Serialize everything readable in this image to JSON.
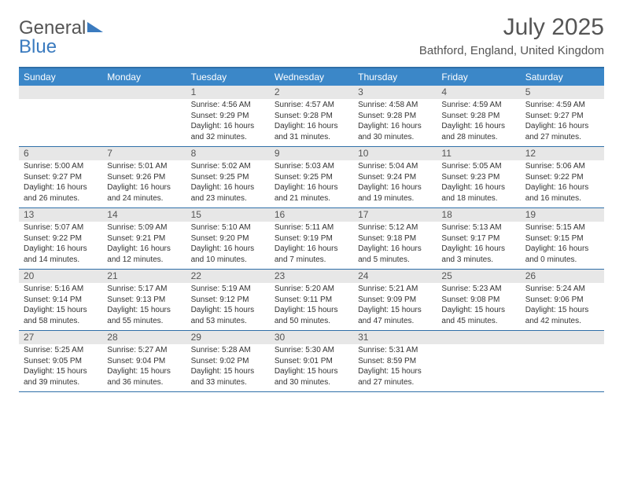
{
  "brand": {
    "part1": "General",
    "part2": "Blue"
  },
  "title": "July 2025",
  "location": "Bathford, England, United Kingdom",
  "colors": {
    "header_bg": "#3b87c8",
    "border": "#2f6fa8",
    "daynum_bg": "#e7e7e7",
    "text": "#555555",
    "brand_blue": "#3b7bbf"
  },
  "days_of_week": [
    "Sunday",
    "Monday",
    "Tuesday",
    "Wednesday",
    "Thursday",
    "Friday",
    "Saturday"
  ],
  "weeks": [
    [
      {
        "n": "",
        "sr": "",
        "ss": "",
        "dl": ""
      },
      {
        "n": "",
        "sr": "",
        "ss": "",
        "dl": ""
      },
      {
        "n": "1",
        "sr": "Sunrise: 4:56 AM",
        "ss": "Sunset: 9:29 PM",
        "dl": "Daylight: 16 hours and 32 minutes."
      },
      {
        "n": "2",
        "sr": "Sunrise: 4:57 AM",
        "ss": "Sunset: 9:28 PM",
        "dl": "Daylight: 16 hours and 31 minutes."
      },
      {
        "n": "3",
        "sr": "Sunrise: 4:58 AM",
        "ss": "Sunset: 9:28 PM",
        "dl": "Daylight: 16 hours and 30 minutes."
      },
      {
        "n": "4",
        "sr": "Sunrise: 4:59 AM",
        "ss": "Sunset: 9:28 PM",
        "dl": "Daylight: 16 hours and 28 minutes."
      },
      {
        "n": "5",
        "sr": "Sunrise: 4:59 AM",
        "ss": "Sunset: 9:27 PM",
        "dl": "Daylight: 16 hours and 27 minutes."
      }
    ],
    [
      {
        "n": "6",
        "sr": "Sunrise: 5:00 AM",
        "ss": "Sunset: 9:27 PM",
        "dl": "Daylight: 16 hours and 26 minutes."
      },
      {
        "n": "7",
        "sr": "Sunrise: 5:01 AM",
        "ss": "Sunset: 9:26 PM",
        "dl": "Daylight: 16 hours and 24 minutes."
      },
      {
        "n": "8",
        "sr": "Sunrise: 5:02 AM",
        "ss": "Sunset: 9:25 PM",
        "dl": "Daylight: 16 hours and 23 minutes."
      },
      {
        "n": "9",
        "sr": "Sunrise: 5:03 AM",
        "ss": "Sunset: 9:25 PM",
        "dl": "Daylight: 16 hours and 21 minutes."
      },
      {
        "n": "10",
        "sr": "Sunrise: 5:04 AM",
        "ss": "Sunset: 9:24 PM",
        "dl": "Daylight: 16 hours and 19 minutes."
      },
      {
        "n": "11",
        "sr": "Sunrise: 5:05 AM",
        "ss": "Sunset: 9:23 PM",
        "dl": "Daylight: 16 hours and 18 minutes."
      },
      {
        "n": "12",
        "sr": "Sunrise: 5:06 AM",
        "ss": "Sunset: 9:22 PM",
        "dl": "Daylight: 16 hours and 16 minutes."
      }
    ],
    [
      {
        "n": "13",
        "sr": "Sunrise: 5:07 AM",
        "ss": "Sunset: 9:22 PM",
        "dl": "Daylight: 16 hours and 14 minutes."
      },
      {
        "n": "14",
        "sr": "Sunrise: 5:09 AM",
        "ss": "Sunset: 9:21 PM",
        "dl": "Daylight: 16 hours and 12 minutes."
      },
      {
        "n": "15",
        "sr": "Sunrise: 5:10 AM",
        "ss": "Sunset: 9:20 PM",
        "dl": "Daylight: 16 hours and 10 minutes."
      },
      {
        "n": "16",
        "sr": "Sunrise: 5:11 AM",
        "ss": "Sunset: 9:19 PM",
        "dl": "Daylight: 16 hours and 7 minutes."
      },
      {
        "n": "17",
        "sr": "Sunrise: 5:12 AM",
        "ss": "Sunset: 9:18 PM",
        "dl": "Daylight: 16 hours and 5 minutes."
      },
      {
        "n": "18",
        "sr": "Sunrise: 5:13 AM",
        "ss": "Sunset: 9:17 PM",
        "dl": "Daylight: 16 hours and 3 minutes."
      },
      {
        "n": "19",
        "sr": "Sunrise: 5:15 AM",
        "ss": "Sunset: 9:15 PM",
        "dl": "Daylight: 16 hours and 0 minutes."
      }
    ],
    [
      {
        "n": "20",
        "sr": "Sunrise: 5:16 AM",
        "ss": "Sunset: 9:14 PM",
        "dl": "Daylight: 15 hours and 58 minutes."
      },
      {
        "n": "21",
        "sr": "Sunrise: 5:17 AM",
        "ss": "Sunset: 9:13 PM",
        "dl": "Daylight: 15 hours and 55 minutes."
      },
      {
        "n": "22",
        "sr": "Sunrise: 5:19 AM",
        "ss": "Sunset: 9:12 PM",
        "dl": "Daylight: 15 hours and 53 minutes."
      },
      {
        "n": "23",
        "sr": "Sunrise: 5:20 AM",
        "ss": "Sunset: 9:11 PM",
        "dl": "Daylight: 15 hours and 50 minutes."
      },
      {
        "n": "24",
        "sr": "Sunrise: 5:21 AM",
        "ss": "Sunset: 9:09 PM",
        "dl": "Daylight: 15 hours and 47 minutes."
      },
      {
        "n": "25",
        "sr": "Sunrise: 5:23 AM",
        "ss": "Sunset: 9:08 PM",
        "dl": "Daylight: 15 hours and 45 minutes."
      },
      {
        "n": "26",
        "sr": "Sunrise: 5:24 AM",
        "ss": "Sunset: 9:06 PM",
        "dl": "Daylight: 15 hours and 42 minutes."
      }
    ],
    [
      {
        "n": "27",
        "sr": "Sunrise: 5:25 AM",
        "ss": "Sunset: 9:05 PM",
        "dl": "Daylight: 15 hours and 39 minutes."
      },
      {
        "n": "28",
        "sr": "Sunrise: 5:27 AM",
        "ss": "Sunset: 9:04 PM",
        "dl": "Daylight: 15 hours and 36 minutes."
      },
      {
        "n": "29",
        "sr": "Sunrise: 5:28 AM",
        "ss": "Sunset: 9:02 PM",
        "dl": "Daylight: 15 hours and 33 minutes."
      },
      {
        "n": "30",
        "sr": "Sunrise: 5:30 AM",
        "ss": "Sunset: 9:01 PM",
        "dl": "Daylight: 15 hours and 30 minutes."
      },
      {
        "n": "31",
        "sr": "Sunrise: 5:31 AM",
        "ss": "Sunset: 8:59 PM",
        "dl": "Daylight: 15 hours and 27 minutes."
      },
      {
        "n": "",
        "sr": "",
        "ss": "",
        "dl": ""
      },
      {
        "n": "",
        "sr": "",
        "ss": "",
        "dl": ""
      }
    ]
  ]
}
